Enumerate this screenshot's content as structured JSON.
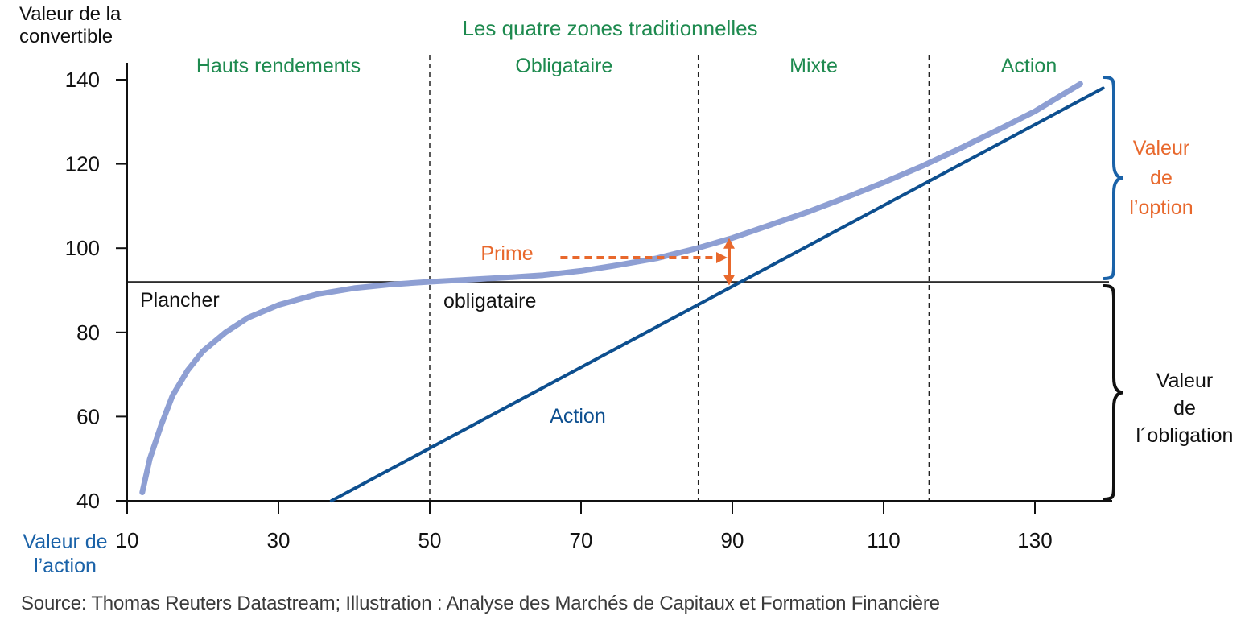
{
  "chart_data": {
    "type": "line",
    "ylabel": "Valeur de la convertible",
    "xlabel": "Valeur de l’action",
    "title": "Les quatre zones traditionnelles",
    "xlim": [
      10,
      140
    ],
    "ylim": [
      40,
      140
    ],
    "xticks": [
      10,
      30,
      50,
      70,
      90,
      110,
      130
    ],
    "yticks": [
      40,
      60,
      80,
      100,
      120,
      140
    ],
    "zones": [
      {
        "label": "Hauts rendements",
        "x_from": 10,
        "x_to": 50
      },
      {
        "label": "Obligataire",
        "x_from": 50,
        "x_to": 85.5
      },
      {
        "label": "Mixte",
        "x_from": 85.5,
        "x_to": 116
      },
      {
        "label": "Action",
        "x_from": 116,
        "x_to": 140
      }
    ],
    "zone_boundaries": [
      50,
      85.5,
      116
    ],
    "bond_floor": 92,
    "bond_floor_labels": [
      "Plancher",
      "obligataire"
    ],
    "series": [
      {
        "key": "convertible",
        "color": "#8e9fd3",
        "points": [
          [
            12,
            42
          ],
          [
            13,
            50
          ],
          [
            14.5,
            58
          ],
          [
            16,
            65
          ],
          [
            18,
            71
          ],
          [
            20,
            75.5
          ],
          [
            23,
            80
          ],
          [
            26,
            83.5
          ],
          [
            30,
            86.5
          ],
          [
            35,
            89
          ],
          [
            40,
            90.5
          ],
          [
            45,
            91.4
          ],
          [
            50,
            92
          ],
          [
            55,
            92.5
          ],
          [
            60,
            93
          ],
          [
            65,
            93.6
          ],
          [
            70,
            94.6
          ],
          [
            75,
            96
          ],
          [
            80,
            97.6
          ],
          [
            85,
            99.8
          ],
          [
            90,
            102.4
          ],
          [
            95,
            105.5
          ],
          [
            100,
            108.6
          ],
          [
            105,
            112
          ],
          [
            110,
            115.6
          ],
          [
            115,
            119.4
          ],
          [
            120,
            123.6
          ],
          [
            125,
            128
          ],
          [
            130,
            132.5
          ],
          [
            136,
            139
          ]
        ]
      },
      {
        "key": "action",
        "name": "Action",
        "color": "#0d4f8f",
        "points": [
          [
            37,
            40
          ],
          [
            139,
            138
          ]
        ]
      }
    ],
    "premium": {
      "label": "Prime",
      "x": 90,
      "y_from": 91.5,
      "y_to": 102,
      "x_label_from": 66,
      "color": "#e8682c"
    },
    "brackets": [
      {
        "label_lines": [
          "Valeur",
          "de",
          "l’option"
        ],
        "y_from": 92,
        "y_to": 139,
        "color": "#1a62a8",
        "text_color": "#e8682c"
      },
      {
        "label_lines": [
          "Valeur",
          "de",
          "l´obligation"
        ],
        "y_from": 40,
        "y_to": 92,
        "color": "#111111",
        "text_color": "#111111"
      }
    ],
    "colors": {
      "zone_text": "#1e8a4f",
      "axis": "#111111",
      "title": "#1e8a4f"
    }
  },
  "source": "Source: Thomas Reuters Datastream; Illustration : Analyse des Marchés de Capitaux et Formation Financière"
}
